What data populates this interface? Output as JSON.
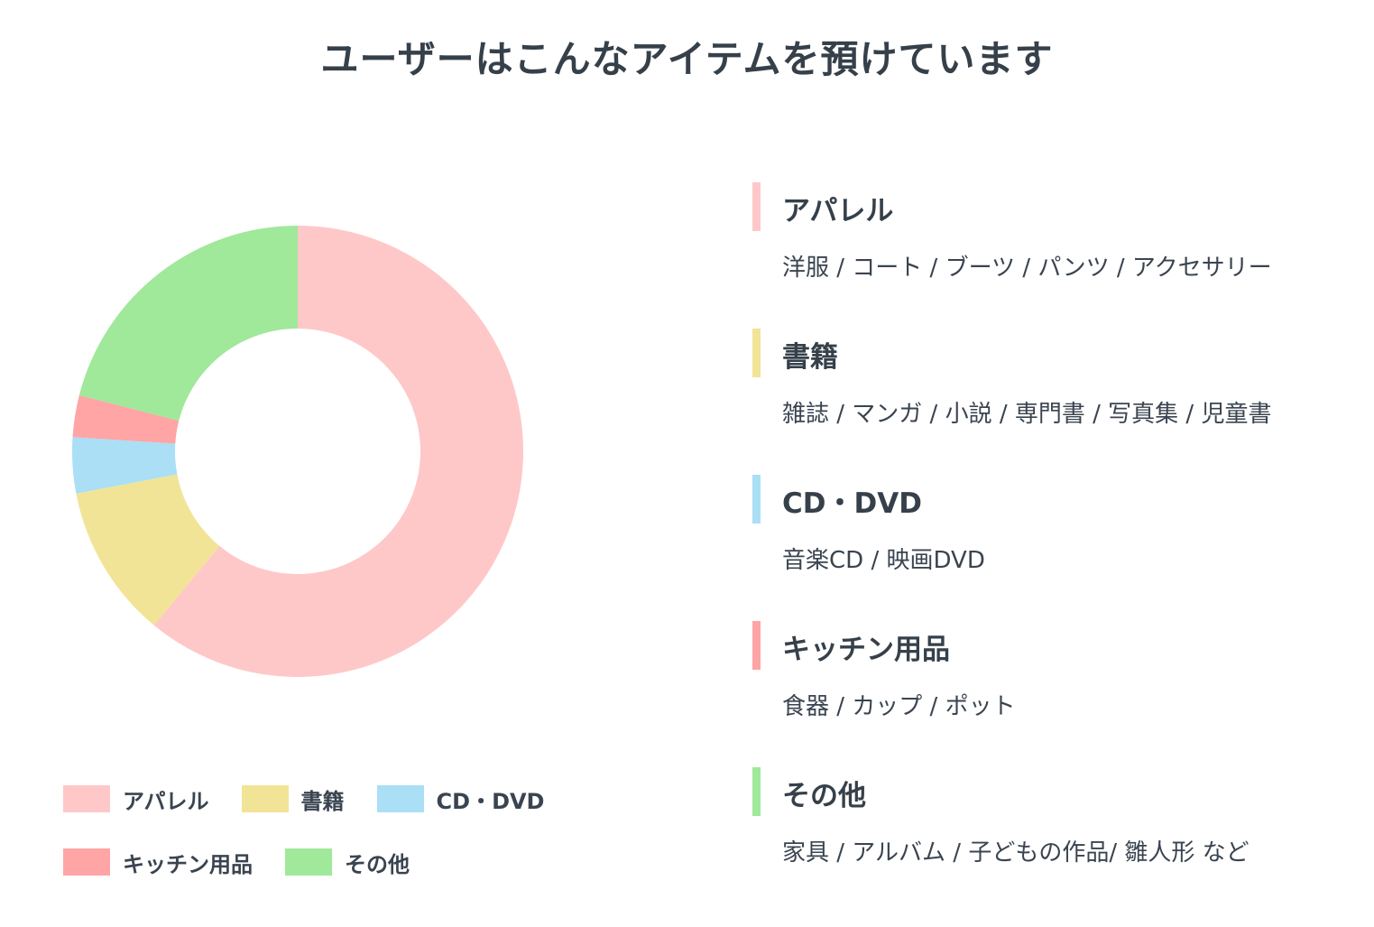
{
  "page": {
    "title": "ユーザーはこんなアイテムを預けています"
  },
  "chart_data": {
    "type": "pie",
    "variant": "donut",
    "categories": [
      "アパレル",
      "書籍",
      "CD・DVD",
      "キッチン用品",
      "その他"
    ],
    "values": [
      61,
      11,
      4,
      3,
      21
    ],
    "unit": "%",
    "colors": [
      "#ffc8c8",
      "#f2e496",
      "#aadff5",
      "#ffa5a5",
      "#a0e89a"
    ],
    "legend_position": "bottom",
    "start_angle_deg": 0,
    "direction": "clockwise"
  },
  "legend": {
    "rows": [
      [
        {
          "label": "アパレル",
          "color": "#ffc8c8"
        },
        {
          "label": "書籍",
          "color": "#f2e496"
        },
        {
          "label": "CD・DVD",
          "color": "#aadff5"
        }
      ],
      [
        {
          "label": "キッチン用品",
          "color": "#ffa5a5"
        },
        {
          "label": "その他",
          "color": "#a0e89a"
        }
      ]
    ]
  },
  "categories": [
    {
      "title": "アパレル",
      "desc": "洋服 / コート / ブーツ / パンツ / アクセサリー",
      "color": "#ffc8c8"
    },
    {
      "title": "書籍",
      "desc": "雑誌 / マンガ / 小説 / 専門書 / 写真集 / 児童書",
      "color": "#f2e496"
    },
    {
      "title": "CD・DVD",
      "desc": "音楽CD / 映画DVD",
      "color": "#aadff5"
    },
    {
      "title": "キッチン用品",
      "desc": "食器 / カップ / ポット",
      "color": "#ffa5a5"
    },
    {
      "title": "その他",
      "desc": "家具 / アルバム / 子どもの作品/ 雛人形 など",
      "color": "#a0e89a"
    }
  ]
}
